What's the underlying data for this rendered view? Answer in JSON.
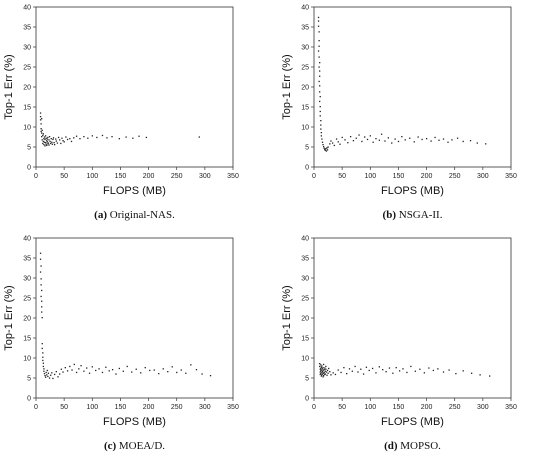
{
  "chart_data": [
    {
      "type": "scatter",
      "caption_letter": "(a)",
      "caption_text": " Original-NAS.",
      "xlabel": "FLOPS (MB)",
      "ylabel": "Top-1 Err (%)",
      "xlim": [
        0,
        350
      ],
      "ylim": [
        0,
        40
      ],
      "xticks": [
        "0",
        "50",
        "100",
        "150",
        "200",
        "250",
        "300",
        "350"
      ],
      "yticks": [
        "0",
        "5",
        "10",
        "15",
        "20",
        "25",
        "30",
        "35",
        "40"
      ],
      "grid": false,
      "points": [
        [
          8,
          11.8
        ],
        [
          8,
          12.6
        ],
        [
          8,
          13.5
        ],
        [
          9,
          10.8
        ],
        [
          9,
          9.6
        ],
        [
          9,
          8.9
        ],
        [
          10,
          12.1
        ],
        [
          10,
          7.6
        ],
        [
          10,
          8.5
        ],
        [
          11,
          9.2
        ],
        [
          11,
          6.8
        ],
        [
          12,
          7.9
        ],
        [
          12,
          5.9
        ],
        [
          13,
          8.3
        ],
        [
          13,
          6.4
        ],
        [
          14,
          7.1
        ],
        [
          14,
          5.6
        ],
        [
          15,
          6.2
        ],
        [
          15,
          7.5
        ],
        [
          16,
          6.9
        ],
        [
          16,
          5.3
        ],
        [
          17,
          7.8
        ],
        [
          17,
          6.1
        ],
        [
          18,
          5.7
        ],
        [
          18,
          7.2
        ],
        [
          19,
          6.6
        ],
        [
          19,
          5.4
        ],
        [
          20,
          7.0
        ],
        [
          20,
          6.3
        ],
        [
          21,
          5.8
        ],
        [
          21,
          7.4
        ],
        [
          22,
          6.0
        ],
        [
          23,
          6.8
        ],
        [
          23,
          5.5
        ],
        [
          24,
          7.6
        ],
        [
          25,
          6.4
        ],
        [
          26,
          5.9
        ],
        [
          27,
          7.1
        ],
        [
          28,
          6.2
        ],
        [
          29,
          5.7
        ],
        [
          30,
          6.9
        ],
        [
          31,
          7.3
        ],
        [
          32,
          6.1
        ],
        [
          33,
          5.6
        ],
        [
          35,
          7.0
        ],
        [
          36,
          6.5
        ],
        [
          38,
          6.0
        ],
        [
          40,
          7.4
        ],
        [
          42,
          6.8
        ],
        [
          44,
          5.9
        ],
        [
          46,
          7.2
        ],
        [
          48,
          6.6
        ],
        [
          50,
          6.3
        ],
        [
          53,
          7.5
        ],
        [
          56,
          6.9
        ],
        [
          60,
          7.1
        ],
        [
          63,
          6.4
        ],
        [
          67,
          7.3
        ],
        [
          72,
          7.7
        ],
        [
          78,
          7.1
        ],
        [
          85,
          7.6
        ],
        [
          92,
          7.2
        ],
        [
          100,
          7.8
        ],
        [
          108,
          7.4
        ],
        [
          118,
          7.9
        ],
        [
          126,
          7.3
        ],
        [
          135,
          7.6
        ],
        [
          148,
          7.1
        ],
        [
          160,
          7.5
        ],
        [
          172,
          7.2
        ],
        [
          183,
          7.7
        ],
        [
          196,
          7.4
        ],
        [
          290,
          7.5
        ]
      ]
    },
    {
      "type": "scatter",
      "caption_letter": "(b)",
      "caption_text": " NSGA-II.",
      "xlabel": "FLOPS (MB)",
      "ylabel": "Top-1 Err (%)",
      "xlim": [
        0,
        350
      ],
      "ylim": [
        0,
        40
      ],
      "xticks": [
        "0",
        "50",
        "100",
        "150",
        "200",
        "250",
        "300",
        "350"
      ],
      "yticks": [
        "0",
        "5",
        "10",
        "15",
        "20",
        "25",
        "30",
        "35",
        "40"
      ],
      "grid": false,
      "points": [
        [
          8,
          36.5
        ],
        [
          8,
          37.4
        ],
        [
          8,
          35.2
        ],
        [
          9,
          33.8
        ],
        [
          9,
          31.6
        ],
        [
          9,
          30.2
        ],
        [
          8,
          29.0
        ],
        [
          9,
          27.5
        ],
        [
          10,
          26.1
        ],
        [
          9,
          25.0
        ],
        [
          10,
          24.0
        ],
        [
          10,
          22.7
        ],
        [
          9,
          21.4
        ],
        [
          10,
          20.3
        ],
        [
          10,
          18.8
        ],
        [
          11,
          17.6
        ],
        [
          10,
          16.4
        ],
        [
          11,
          15.1
        ],
        [
          11,
          13.9
        ],
        [
          11,
          12.8
        ],
        [
          12,
          11.6
        ],
        [
          12,
          10.5
        ],
        [
          12,
          9.5
        ],
        [
          13,
          8.6
        ],
        [
          13,
          7.8
        ],
        [
          14,
          7.0
        ],
        [
          15,
          6.2
        ],
        [
          16,
          5.6
        ],
        [
          17,
          5.1
        ],
        [
          18,
          4.7
        ],
        [
          19,
          4.4
        ],
        [
          20,
          4.2
        ],
        [
          21,
          4.6
        ],
        [
          22,
          4.0
        ],
        [
          23,
          4.8
        ],
        [
          24,
          4.3
        ],
        [
          25,
          5.0
        ],
        [
          28,
          5.8
        ],
        [
          30,
          6.5
        ],
        [
          33,
          6.0
        ],
        [
          36,
          5.4
        ],
        [
          40,
          7.0
        ],
        [
          43,
          6.3
        ],
        [
          46,
          5.7
        ],
        [
          50,
          7.4
        ],
        [
          55,
          6.8
        ],
        [
          60,
          6.1
        ],
        [
          65,
          7.6
        ],
        [
          70,
          6.6
        ],
        [
          75,
          7.2
        ],
        [
          80,
          8.0
        ],
        [
          85,
          6.4
        ],
        [
          90,
          7.5
        ],
        [
          95,
          6.9
        ],
        [
          100,
          7.8
        ],
        [
          105,
          6.2
        ],
        [
          110,
          7.1
        ],
        [
          116,
          6.7
        ],
        [
          120,
          8.2
        ],
        [
          126,
          6.5
        ],
        [
          132,
          7.3
        ],
        [
          138,
          6.0
        ],
        [
          144,
          7.0
        ],
        [
          150,
          6.4
        ],
        [
          156,
          7.6
        ],
        [
          162,
          6.8
        ],
        [
          170,
          7.2
        ],
        [
          178,
          6.3
        ],
        [
          185,
          7.5
        ],
        [
          192,
          6.9
        ],
        [
          200,
          7.1
        ],
        [
          208,
          6.5
        ],
        [
          215,
          7.4
        ],
        [
          222,
          6.7
        ],
        [
          230,
          7.0
        ],
        [
          238,
          6.2
        ],
        [
          245,
          6.8
        ],
        [
          255,
          7.2
        ],
        [
          265,
          6.4
        ],
        [
          278,
          6.6
        ],
        [
          290,
          6.0
        ],
        [
          305,
          5.8
        ]
      ]
    },
    {
      "type": "scatter",
      "caption_letter": "(c)",
      "caption_text": " MOEA/D.",
      "xlabel": "FLOPS (MB)",
      "ylabel": "Top-1 Err (%)",
      "xlim": [
        0,
        350
      ],
      "ylim": [
        0,
        40
      ],
      "xticks": [
        "0",
        "50",
        "100",
        "150",
        "200",
        "250",
        "300",
        "350"
      ],
      "yticks": [
        "0",
        "5",
        "10",
        "15",
        "20",
        "25",
        "30",
        "35",
        "40"
      ],
      "grid": false,
      "points": [
        [
          8,
          36.2
        ],
        [
          8,
          34.7
        ],
        [
          9,
          33.0
        ],
        [
          8,
          31.5
        ],
        [
          9,
          29.8
        ],
        [
          9,
          28.3
        ],
        [
          10,
          26.9
        ],
        [
          9,
          25.4
        ],
        [
          10,
          24.2
        ],
        [
          10,
          22.8
        ],
        [
          10,
          21.5
        ],
        [
          11,
          20.1
        ],
        [
          11,
          13.6
        ],
        [
          11,
          12.4
        ],
        [
          12,
          11.3
        ],
        [
          12,
          10.2
        ],
        [
          12,
          9.4
        ],
        [
          13,
          8.7
        ],
        [
          13,
          7.9
        ],
        [
          14,
          7.3
        ],
        [
          14,
          6.7
        ],
        [
          15,
          6.1
        ],
        [
          16,
          5.6
        ],
        [
          17,
          5.2
        ],
        [
          18,
          6.4
        ],
        [
          19,
          5.8
        ],
        [
          20,
          6.9
        ],
        [
          21,
          5.4
        ],
        [
          22,
          6.2
        ],
        [
          24,
          5.0
        ],
        [
          26,
          5.7
        ],
        [
          28,
          6.3
        ],
        [
          30,
          4.9
        ],
        [
          33,
          5.9
        ],
        [
          36,
          6.6
        ],
        [
          39,
          5.3
        ],
        [
          42,
          6.0
        ],
        [
          45,
          7.2
        ],
        [
          48,
          6.5
        ],
        [
          52,
          7.6
        ],
        [
          56,
          6.8
        ],
        [
          60,
          7.9
        ],
        [
          64,
          7.0
        ],
        [
          68,
          8.4
        ],
        [
          72,
          6.4
        ],
        [
          76,
          7.3
        ],
        [
          80,
          8.1
        ],
        [
          85,
          6.7
        ],
        [
          90,
          7.5
        ],
        [
          95,
          6.2
        ],
        [
          100,
          7.8
        ],
        [
          106,
          6.9
        ],
        [
          112,
          7.3
        ],
        [
          118,
          6.4
        ],
        [
          124,
          7.7
        ],
        [
          130,
          6.8
        ],
        [
          136,
          7.1
        ],
        [
          142,
          6.0
        ],
        [
          148,
          7.4
        ],
        [
          155,
          6.7
        ],
        [
          162,
          7.9
        ],
        [
          170,
          6.5
        ],
        [
          178,
          7.2
        ],
        [
          186,
          6.3
        ],
        [
          194,
          7.6
        ],
        [
          202,
          6.9
        ],
        [
          210,
          7.0
        ],
        [
          218,
          6.1
        ],
        [
          226,
          7.3
        ],
        [
          234,
          6.6
        ],
        [
          242,
          7.8
        ],
        [
          250,
          6.4
        ],
        [
          258,
          7.0
        ],
        [
          266,
          6.2
        ],
        [
          275,
          8.3
        ],
        [
          285,
          7.1
        ],
        [
          295,
          6.0
        ],
        [
          310,
          5.6
        ]
      ]
    },
    {
      "type": "scatter",
      "caption_letter": "(d)",
      "caption_text": " MOPSO.",
      "xlabel": "FLOPS (MB)",
      "ylabel": "Top-1 Err (%)",
      "xlim": [
        0,
        350
      ],
      "ylim": [
        0,
        40
      ],
      "xticks": [
        "0",
        "50",
        "100",
        "150",
        "200",
        "250",
        "300",
        "350"
      ],
      "yticks": [
        "0",
        "5",
        "10",
        "15",
        "20",
        "25",
        "30",
        "35",
        "40"
      ],
      "grid": false,
      "points": [
        [
          10,
          8.6
        ],
        [
          10,
          7.9
        ],
        [
          11,
          7.2
        ],
        [
          11,
          6.5
        ],
        [
          11,
          5.9
        ],
        [
          12,
          8.3
        ],
        [
          12,
          7.4
        ],
        [
          12,
          6.8
        ],
        [
          12,
          6.1
        ],
        [
          13,
          5.5
        ],
        [
          13,
          7.7
        ],
        [
          13,
          7.0
        ],
        [
          14,
          6.4
        ],
        [
          14,
          5.8
        ],
        [
          14,
          8.0
        ],
        [
          15,
          7.3
        ],
        [
          15,
          6.6
        ],
        [
          15,
          6.0
        ],
        [
          16,
          5.3
        ],
        [
          16,
          7.6
        ],
        [
          16,
          6.9
        ],
        [
          17,
          6.2
        ],
        [
          17,
          5.6
        ],
        [
          17,
          8.4
        ],
        [
          18,
          7.1
        ],
        [
          18,
          6.4
        ],
        [
          19,
          5.9
        ],
        [
          19,
          7.5
        ],
        [
          20,
          6.7
        ],
        [
          20,
          6.0
        ],
        [
          21,
          7.9
        ],
        [
          21,
          7.2
        ],
        [
          22,
          6.5
        ],
        [
          23,
          5.7
        ],
        [
          24,
          6.9
        ],
        [
          25,
          6.2
        ],
        [
          26,
          7.4
        ],
        [
          28,
          6.6
        ],
        [
          30,
          5.8
        ],
        [
          34,
          6.3
        ],
        [
          38,
          5.9
        ],
        [
          43,
          7.0
        ],
        [
          48,
          6.4
        ],
        [
          53,
          7.6
        ],
        [
          58,
          6.1
        ],
        [
          63,
          7.3
        ],
        [
          68,
          6.7
        ],
        [
          73,
          7.9
        ],
        [
          78,
          6.5
        ],
        [
          83,
          7.2
        ],
        [
          88,
          6.0
        ],
        [
          93,
          7.7
        ],
        [
          98,
          6.9
        ],
        [
          104,
          7.4
        ],
        [
          110,
          6.3
        ],
        [
          116,
          7.8
        ],
        [
          122,
          7.1
        ],
        [
          128,
          6.6
        ],
        [
          134,
          7.5
        ],
        [
          140,
          6.2
        ],
        [
          146,
          7.6
        ],
        [
          152,
          6.8
        ],
        [
          158,
          7.3
        ],
        [
          165,
          6.4
        ],
        [
          172,
          7.9
        ],
        [
          180,
          6.7
        ],
        [
          188,
          7.2
        ],
        [
          196,
          6.3
        ],
        [
          204,
          7.5
        ],
        [
          212,
          6.9
        ],
        [
          220,
          7.3
        ],
        [
          230,
          6.5
        ],
        [
          240,
          7.0
        ],
        [
          252,
          6.1
        ],
        [
          265,
          6.8
        ],
        [
          280,
          6.2
        ],
        [
          295,
          5.8
        ],
        [
          312,
          5.5
        ]
      ]
    }
  ]
}
